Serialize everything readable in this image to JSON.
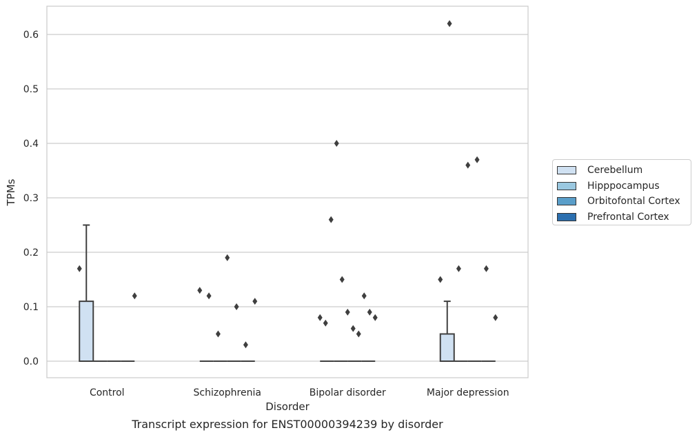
{
  "caption": "Transcript expression for ENST00000394239 by disorder",
  "chart_data": {
    "type": "box",
    "xlabel": "Disorder",
    "ylabel": "TPMs",
    "categories": [
      "Control",
      "Schizophrenia",
      "Bipolar disorder",
      "Major depression"
    ],
    "ylim": [
      -0.03,
      0.65
    ],
    "yticks": [
      0.0,
      0.1,
      0.2,
      0.3,
      0.4,
      0.5,
      0.6
    ],
    "ytick_labels": [
      "0.0",
      "0.1",
      "0.2",
      "0.3",
      "0.4",
      "0.5",
      "0.6"
    ],
    "grid": "horizontal",
    "legend_position": "right",
    "series": [
      {
        "name": "Cerebellum",
        "color": "#d0e1f2",
        "boxes": [
          {
            "category": "Control",
            "q1": 0.0,
            "median": 0.0,
            "q3": 0.11,
            "whisker_low": 0.0,
            "whisker_high": 0.25,
            "outliers": [
              0.17,
              0.12
            ]
          },
          {
            "category": "Schizophrenia",
            "q1": 0.0,
            "median": 0.0,
            "q3": 0.0,
            "whisker_low": 0.0,
            "whisker_high": 0.0,
            "outliers": [
              0.13,
              0.12,
              0.05,
              0.19,
              0.1,
              0.03,
              0.11
            ]
          },
          {
            "category": "Bipolar disorder",
            "q1": 0.0,
            "median": 0.0,
            "q3": 0.0,
            "whisker_low": 0.0,
            "whisker_high": 0.0,
            "outliers": [
              0.08,
              0.07,
              0.26,
              0.4,
              0.15,
              0.09,
              0.06,
              0.05,
              0.12,
              0.09,
              0.08
            ]
          },
          {
            "category": "Major depression",
            "q1": 0.0,
            "median": 0.0,
            "q3": 0.05,
            "whisker_low": 0.0,
            "whisker_high": 0.11,
            "outliers": [
              0.15,
              0.62,
              0.17,
              0.36,
              0.37,
              0.17,
              0.08
            ]
          }
        ]
      },
      {
        "name": "Hipppocampus",
        "color": "#9ac8e0",
        "boxes": []
      },
      {
        "name": "Orbitofontal Cortex",
        "color": "#5a9ec9",
        "boxes": []
      },
      {
        "name": "Prefrontal Cortex",
        "color": "#2c6faf",
        "boxes": []
      }
    ]
  }
}
